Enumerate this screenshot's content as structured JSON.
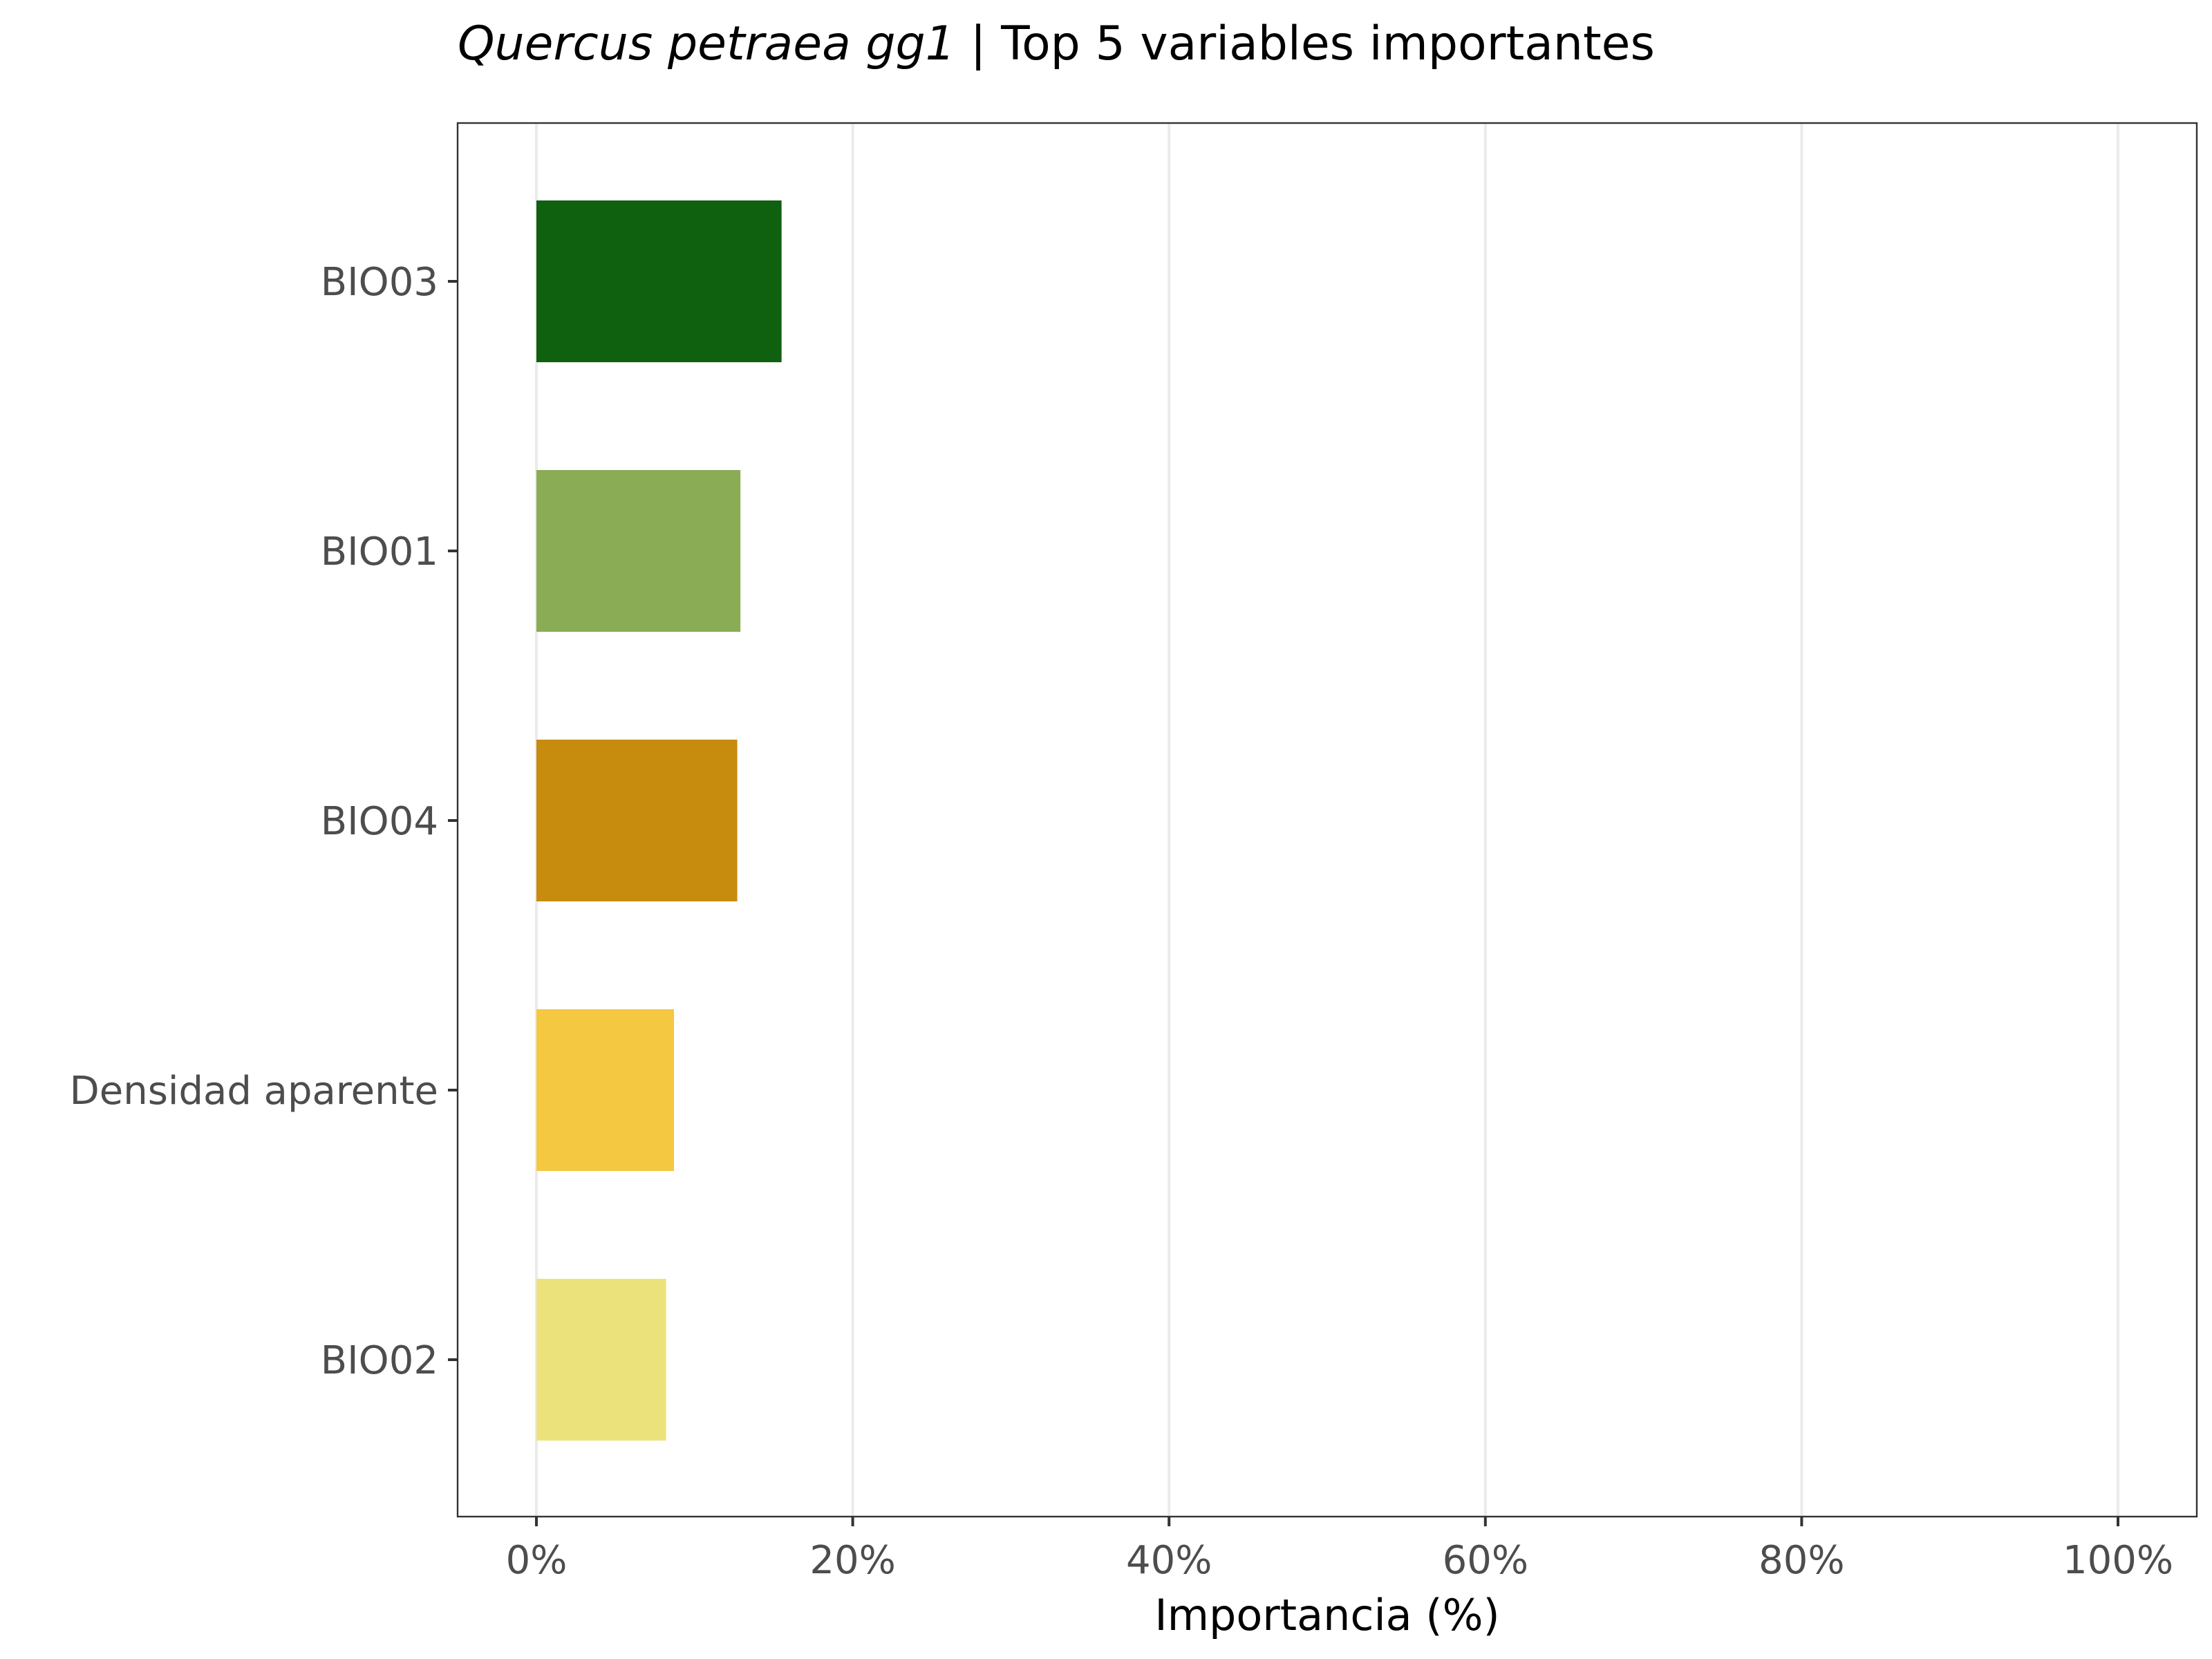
{
  "chart_data": {
    "type": "bar",
    "orientation": "horizontal",
    "title": {
      "italic": "Quercus petraea gg1",
      "rest": " | Top 5 variables importantes"
    },
    "xlabel": "Importancia (%)",
    "ylabel": "",
    "xlim": [
      0,
      100
    ],
    "x_ticks": [
      0,
      20,
      40,
      60,
      80,
      100
    ],
    "x_tick_labels": [
      "0%",
      "20%",
      "40%",
      "60%",
      "80%",
      "100%"
    ],
    "categories": [
      "BIO03",
      "BIO01",
      "BIO04",
      "Densidad aparente",
      "BIO02"
    ],
    "values": [
      15.5,
      12.9,
      12.7,
      8.7,
      8.2
    ],
    "colors": [
      "#0f600f",
      "#8aac54",
      "#c78b0e",
      "#f5c842",
      "#ece27b"
    ],
    "grid": "vertical-major",
    "legend": "none"
  }
}
